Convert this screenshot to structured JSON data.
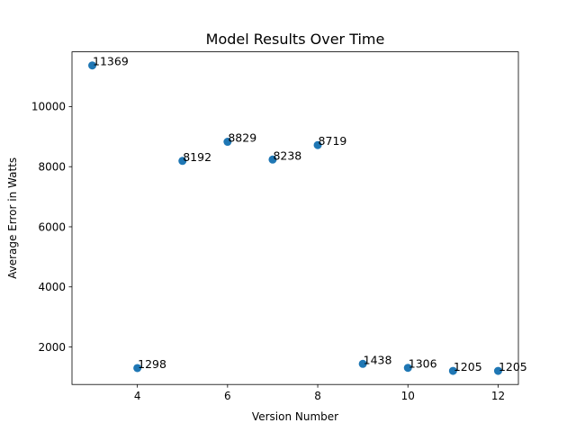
{
  "chart_data": {
    "type": "scatter",
    "title": "Model Results Over Time",
    "xlabel": "Version Number",
    "ylabel": "Average Error in Watts",
    "xlim": [
      2.55,
      12.45
    ],
    "ylim": [
      752,
      11822
    ],
    "xticks": [
      4,
      6,
      8,
      10,
      12
    ],
    "yticks": [
      2000,
      4000,
      6000,
      8000,
      10000
    ],
    "grid": false,
    "legend": "none",
    "marker_color": "#1f77b4",
    "points": [
      {
        "x": 3,
        "y": 11369,
        "label": "11369"
      },
      {
        "x": 4,
        "y": 1298,
        "label": "1298"
      },
      {
        "x": 5,
        "y": 8192,
        "label": "8192"
      },
      {
        "x": 6,
        "y": 8829,
        "label": "8829"
      },
      {
        "x": 7,
        "y": 8238,
        "label": "8238"
      },
      {
        "x": 8,
        "y": 8719,
        "label": "8719"
      },
      {
        "x": 9,
        "y": 1438,
        "label": "1438"
      },
      {
        "x": 10,
        "y": 1306,
        "label": "1306"
      },
      {
        "x": 11,
        "y": 1205,
        "label": "1205"
      },
      {
        "x": 12,
        "y": 1205,
        "label": "1205"
      }
    ]
  }
}
